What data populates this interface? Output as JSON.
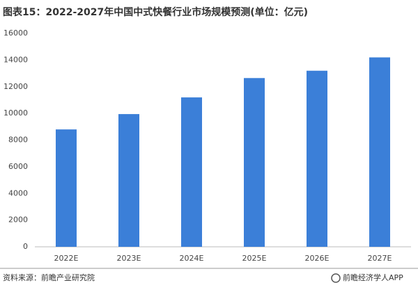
{
  "chart_data": {
    "type": "bar",
    "title": "图表15：2022-2027年中国中式快餐行业市场规模预测(单位：亿元)",
    "categories": [
      "2022E",
      "2023E",
      "2024E",
      "2025E",
      "2026E",
      "2027E"
    ],
    "values": [
      8800,
      9950,
      11200,
      12650,
      13200,
      14200
    ],
    "color": "#3b7fd8",
    "ylim": [
      0,
      16000
    ],
    "yticks": [
      0,
      2000,
      4000,
      6000,
      8000,
      10000,
      12000,
      14000,
      16000
    ],
    "grid": false,
    "source": "资料来源：前瞻产业研究院",
    "brand": "前瞻经济学人APP"
  }
}
